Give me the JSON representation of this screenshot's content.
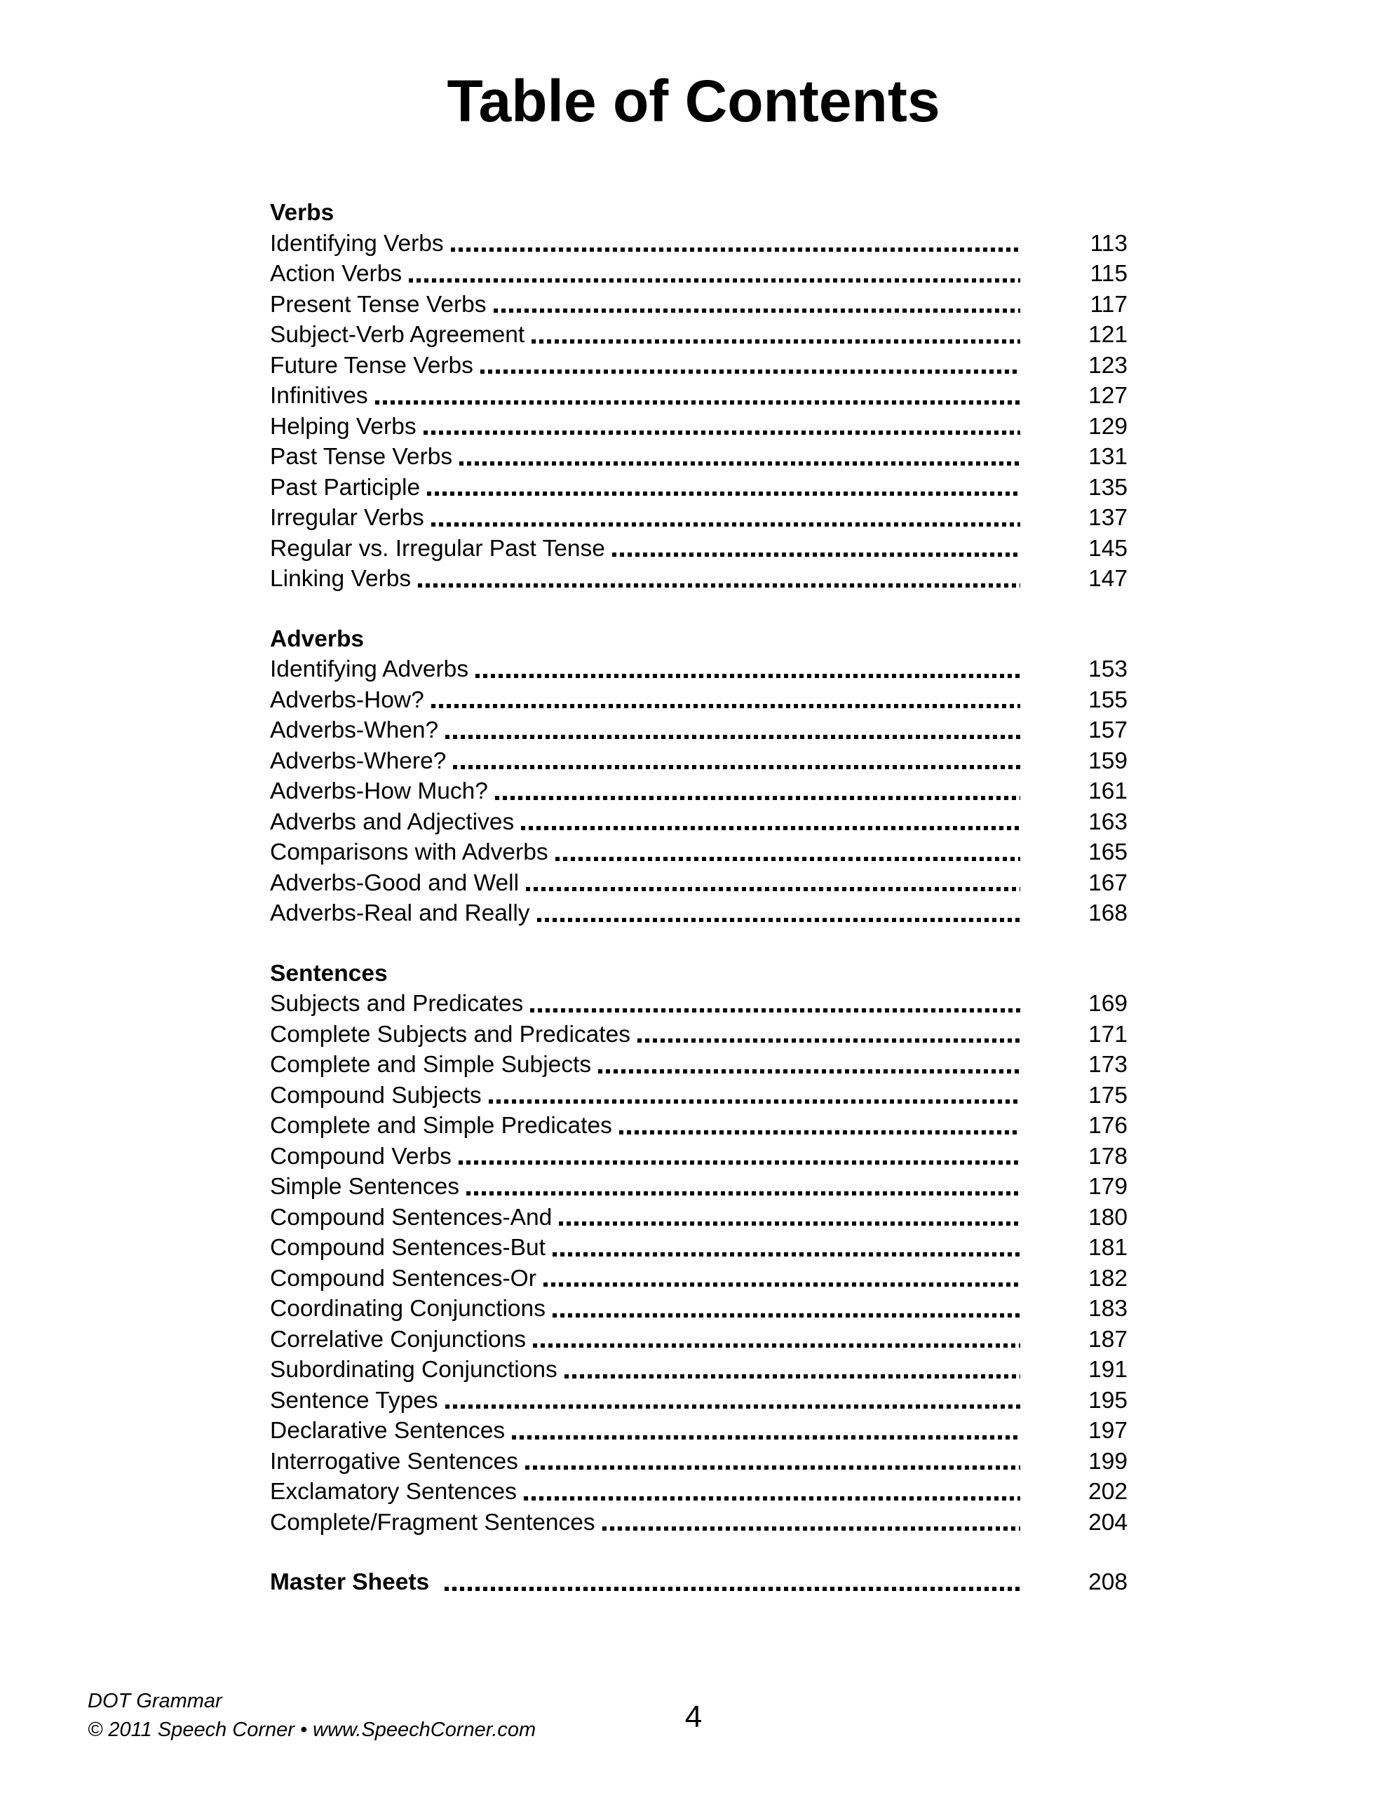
{
  "title": "Table of Contents",
  "toc": {
    "sections": [
      {
        "heading": "Verbs",
        "entries": [
          {
            "label": "Identifying Verbs",
            "page": "113"
          },
          {
            "label": "Action Verbs",
            "page": "115"
          },
          {
            "label": "Present Tense Verbs",
            "page": "117"
          },
          {
            "label": "Subject-Verb Agreement",
            "page": "121"
          },
          {
            "label": "Future Tense Verbs",
            "page": "123"
          },
          {
            "label": "Infinitives",
            "page": "127"
          },
          {
            "label": "Helping Verbs",
            "page": "129"
          },
          {
            "label": "Past Tense Verbs",
            "page": "131"
          },
          {
            "label": "Past Participle",
            "page": "135"
          },
          {
            "label": "Irregular Verbs",
            "page": "137"
          },
          {
            "label": "Regular vs. Irregular Past Tense",
            "page": "145"
          },
          {
            "label": "Linking Verbs",
            "page": "147"
          }
        ]
      },
      {
        "heading": "Adverbs",
        "entries": [
          {
            "label": "Identifying Adverbs",
            "page": "153"
          },
          {
            "label": "Adverbs-How?",
            "page": "155"
          },
          {
            "label": "Adverbs-When?",
            "page": "157"
          },
          {
            "label": "Adverbs-Where?",
            "page": "159"
          },
          {
            "label": "Adverbs-How Much?",
            "page": "161"
          },
          {
            "label": "Adverbs and Adjectives",
            "page": "163"
          },
          {
            "label": "Comparisons with Adverbs",
            "page": "165"
          },
          {
            "label": "Adverbs-Good and Well",
            "page": "167"
          },
          {
            "label": "Adverbs-Real and Really",
            "page": "168"
          }
        ]
      },
      {
        "heading": "Sentences",
        "entries": [
          {
            "label": "Subjects and Predicates",
            "page": "169"
          },
          {
            "label": "Complete Subjects and Predicates",
            "page": "171"
          },
          {
            "label": "Complete and Simple Subjects",
            "page": "173"
          },
          {
            "label": "Compound Subjects",
            "page": "175"
          },
          {
            "label": "Complete and Simple Predicates",
            "page": "176"
          },
          {
            "label": "Compound Verbs",
            "page": "178"
          },
          {
            "label": "Simple Sentences",
            "page": "179"
          },
          {
            "label": "Compound Sentences-And",
            "page": "180"
          },
          {
            "label": "Compound Sentences-But",
            "page": "181"
          },
          {
            "label": "Compound Sentences-Or",
            "page": "182"
          },
          {
            "label": "Coordinating Conjunctions",
            "page": "183"
          },
          {
            "label": "Correlative Conjunctions",
            "page": "187"
          },
          {
            "label": "Subordinating Conjunctions",
            "page": "191"
          },
          {
            "label": "Sentence Types",
            "page": "195"
          },
          {
            "label": "Declarative Sentences",
            "page": "197"
          },
          {
            "label": "Interrogative Sentences",
            "page": "199"
          },
          {
            "label": "Exclamatory Sentences",
            "page": "202"
          },
          {
            "label": "Complete/Fragment Sentences",
            "page": "204"
          }
        ]
      },
      {
        "heading": "Master Sheets",
        "page": "208",
        "entries": []
      }
    ]
  },
  "footer": {
    "line1": "DOT Grammar",
    "line2": "© 2011 Speech Corner • www.SpeechCorner.com",
    "page_number": "4"
  }
}
